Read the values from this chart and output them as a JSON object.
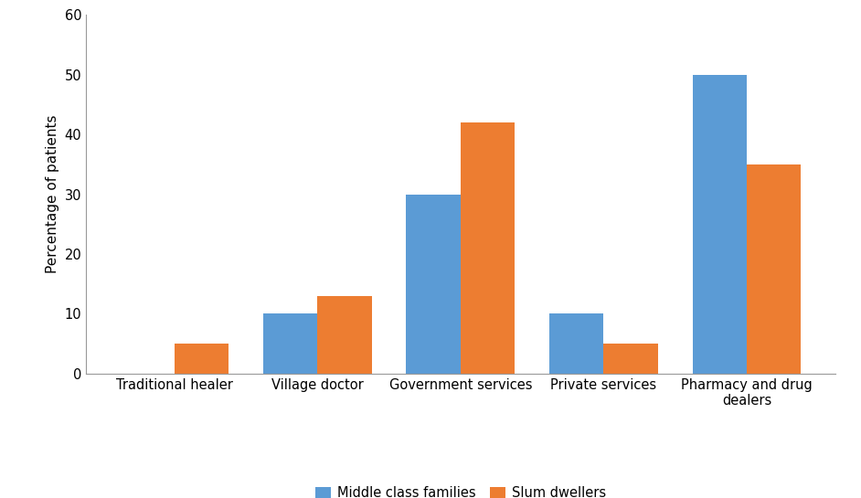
{
  "categories": [
    "Traditional healer",
    "Village doctor",
    "Government services",
    "Private services",
    "Pharmacy and drug\ndealers"
  ],
  "middle_class": [
    0,
    10,
    30,
    10,
    50
  ],
  "slum_dwellers": [
    5,
    13,
    42,
    5,
    35
  ],
  "middle_class_color": "#5B9BD5",
  "slum_dwellers_color": "#ED7D31",
  "ylabel": "Percentage of patients",
  "ylim": [
    0,
    60
  ],
  "yticks": [
    0,
    10,
    20,
    30,
    40,
    50,
    60
  ],
  "legend_labels": [
    "Middle class families",
    "Slum dwellers"
  ],
  "bar_width": 0.38,
  "background_color": "#ffffff",
  "tick_fontsize": 10.5,
  "ylabel_fontsize": 11,
  "legend_fontsize": 10.5
}
